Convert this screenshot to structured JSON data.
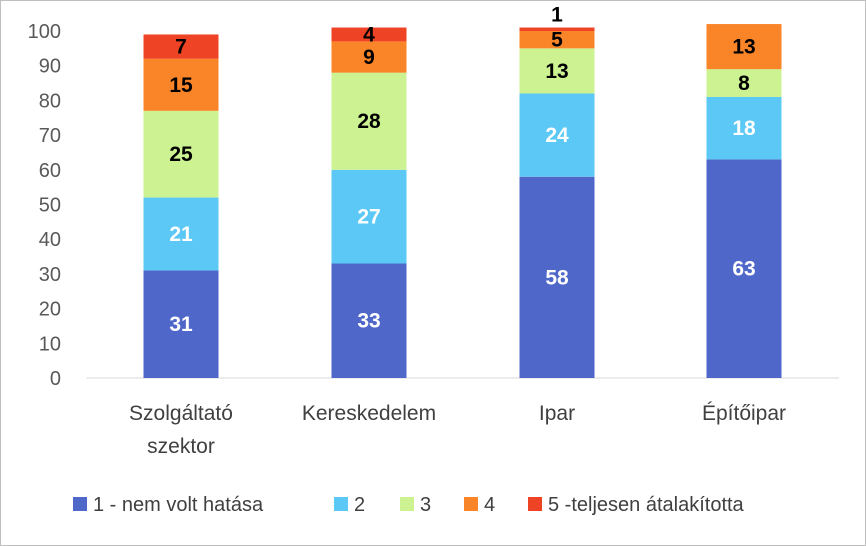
{
  "chart_data": {
    "type": "bar",
    "stacked": true,
    "categories": [
      "Szolgáltató szektor",
      "Kereskedelem",
      "Ipar",
      "Építőipar"
    ],
    "category_lines": [
      [
        "Szolgáltató",
        "szektor"
      ],
      [
        "Kereskedelem"
      ],
      [
        "Ipar"
      ],
      [
        "Építőipar"
      ]
    ],
    "series": [
      {
        "name": "1 - nem volt hatása",
        "color": "#4F67C9",
        "label_color": "#ffffff",
        "values": [
          31,
          33,
          58,
          63
        ]
      },
      {
        "name": "2",
        "color": "#5BC8F5",
        "label_color": "#ffffff",
        "values": [
          21,
          27,
          24,
          18
        ]
      },
      {
        "name": "3",
        "color": "#CCF291",
        "label_color": "#000000",
        "values": [
          25,
          28,
          13,
          8
        ]
      },
      {
        "name": "4",
        "color": "#FA8428",
        "label_color": "#000000",
        "values": [
          15,
          9,
          5,
          13
        ]
      },
      {
        "name": "5 -teljesen átalakította",
        "color": "#EE4324",
        "label_color": "#000000",
        "values": [
          7,
          4,
          1,
          0
        ]
      }
    ],
    "ylim": [
      0,
      100
    ],
    "yticks": [
      0,
      10,
      20,
      30,
      40,
      50,
      60,
      70,
      80,
      90,
      100
    ],
    "grid": false,
    "legend_position": "bottom"
  }
}
